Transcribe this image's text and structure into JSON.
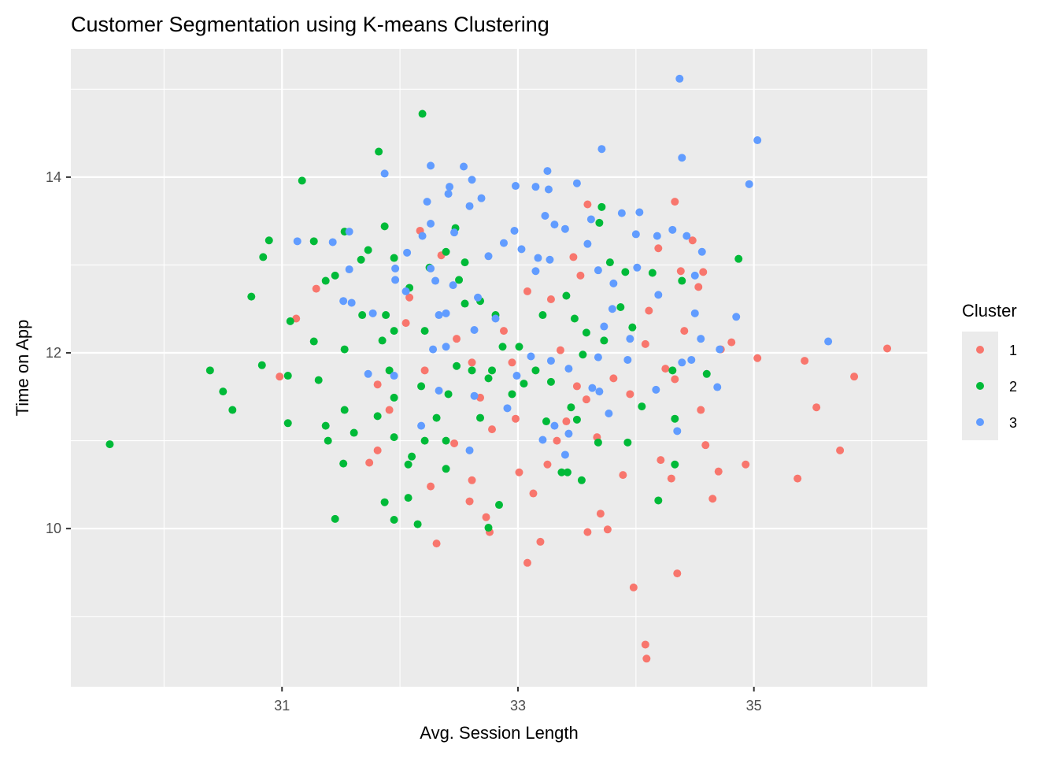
{
  "chart_data": {
    "type": "scatter",
    "title": "Customer Segmentation using K-means Clustering",
    "xlabel": "Avg. Session Length",
    "ylabel": "Time on App",
    "xlim": [
      29.21,
      36.47
    ],
    "ylim": [
      8.2,
      15.46
    ],
    "xticks": [
      31,
      33,
      35
    ],
    "yticks": [
      10,
      12,
      14
    ],
    "xminor": [
      30,
      32,
      34,
      36
    ],
    "yminor": [
      9,
      11,
      13,
      15
    ],
    "grid": true,
    "legend": {
      "title": "Cluster",
      "position": "right"
    },
    "series": [
      {
        "name": "1",
        "color": "#F8766D",
        "points": [
          [
            36.13,
            12.05
          ],
          [
            35.85,
            11.73
          ],
          [
            35.73,
            10.89
          ],
          [
            35.53,
            11.38
          ],
          [
            35.43,
            11.91
          ],
          [
            35.37,
            10.57
          ],
          [
            35.03,
            11.94
          ],
          [
            34.93,
            10.73
          ],
          [
            34.81,
            12.12
          ],
          [
            34.72,
            12.04
          ],
          [
            34.7,
            10.65
          ],
          [
            34.65,
            10.34
          ],
          [
            34.59,
            10.95
          ],
          [
            34.57,
            12.92
          ],
          [
            34.53,
            12.75
          ],
          [
            34.48,
            13.28
          ],
          [
            34.33,
            13.72
          ],
          [
            34.38,
            12.93
          ],
          [
            34.35,
            9.49
          ],
          [
            34.3,
            10.57
          ],
          [
            34.25,
            11.82
          ],
          [
            34.19,
            13.19
          ],
          [
            34.21,
            10.78
          ],
          [
            34.09,
            8.52
          ],
          [
            34.08,
            8.68
          ],
          [
            33.98,
            9.33
          ],
          [
            33.89,
            10.61
          ],
          [
            34.08,
            12.1
          ],
          [
            33.76,
            9.99
          ],
          [
            33.7,
            10.17
          ],
          [
            33.59,
            9.96
          ],
          [
            33.59,
            13.69
          ],
          [
            33.53,
            12.88
          ],
          [
            33.47,
            13.09
          ],
          [
            33.58,
            11.47
          ],
          [
            33.28,
            12.61
          ],
          [
            33.19,
            9.85
          ],
          [
            33.08,
            9.61
          ],
          [
            33.13,
            10.4
          ],
          [
            33.01,
            10.64
          ],
          [
            32.98,
            11.25
          ],
          [
            33.08,
            12.7
          ],
          [
            32.76,
            9.96
          ],
          [
            32.73,
            10.13
          ],
          [
            32.61,
            10.55
          ],
          [
            32.59,
            10.31
          ],
          [
            32.46,
            10.97
          ],
          [
            32.31,
            9.83
          ],
          [
            32.26,
            10.48
          ],
          [
            32.17,
            13.39
          ],
          [
            32.35,
            13.11
          ],
          [
            32.08,
            12.63
          ],
          [
            31.81,
            11.64
          ],
          [
            31.74,
            10.75
          ],
          [
            31.81,
            10.89
          ],
          [
            31.91,
            11.35
          ],
          [
            31.12,
            12.39
          ],
          [
            30.98,
            11.73
          ],
          [
            31.29,
            12.73
          ],
          [
            32.88,
            12.25
          ],
          [
            33.36,
            12.03
          ],
          [
            33.5,
            11.62
          ],
          [
            33.81,
            11.71
          ],
          [
            33.95,
            11.53
          ],
          [
            33.33,
            11.0
          ],
          [
            32.95,
            11.89
          ],
          [
            32.61,
            11.89
          ],
          [
            32.21,
            11.8
          ],
          [
            32.05,
            12.34
          ],
          [
            32.48,
            12.16
          ],
          [
            33.67,
            11.04
          ],
          [
            33.25,
            10.73
          ],
          [
            32.78,
            11.13
          ],
          [
            34.11,
            12.48
          ],
          [
            34.41,
            12.25
          ],
          [
            34.55,
            11.35
          ],
          [
            34.33,
            11.7
          ],
          [
            33.41,
            11.22
          ],
          [
            32.68,
            11.49
          ]
        ]
      },
      {
        "name": "2",
        "color": "#00BA38",
        "points": [
          [
            29.54,
            10.96
          ],
          [
            30.39,
            11.8
          ],
          [
            30.5,
            11.56
          ],
          [
            30.58,
            11.35
          ],
          [
            30.74,
            12.64
          ],
          [
            30.84,
            13.09
          ],
          [
            30.89,
            13.28
          ],
          [
            30.83,
            11.86
          ],
          [
            31.05,
            11.74
          ],
          [
            31.05,
            11.2
          ],
          [
            31.07,
            12.36
          ],
          [
            31.17,
            13.96
          ],
          [
            31.27,
            13.27
          ],
          [
            31.27,
            12.13
          ],
          [
            31.31,
            11.69
          ],
          [
            31.37,
            12.82
          ],
          [
            31.37,
            11.17
          ],
          [
            31.39,
            11.0
          ],
          [
            31.45,
            10.11
          ],
          [
            31.52,
            10.74
          ],
          [
            31.53,
            11.35
          ],
          [
            31.53,
            12.04
          ],
          [
            31.53,
            13.38
          ],
          [
            31.67,
            13.06
          ],
          [
            31.73,
            13.17
          ],
          [
            31.82,
            14.29
          ],
          [
            31.87,
            13.44
          ],
          [
            31.87,
            10.3
          ],
          [
            31.95,
            13.08
          ],
          [
            32.19,
            14.72
          ],
          [
            31.95,
            10.1
          ],
          [
            32.15,
            10.05
          ],
          [
            32.07,
            10.35
          ],
          [
            32.07,
            10.73
          ],
          [
            32.1,
            10.82
          ],
          [
            32.39,
            10.68
          ],
          [
            32.75,
            10.01
          ],
          [
            32.84,
            10.27
          ],
          [
            33.42,
            10.64
          ],
          [
            33.54,
            10.55
          ],
          [
            33.37,
            10.64
          ],
          [
            34.19,
            10.32
          ],
          [
            34.33,
            10.73
          ],
          [
            34.33,
            11.25
          ],
          [
            34.31,
            11.8
          ],
          [
            34.39,
            12.82
          ],
          [
            34.14,
            12.91
          ],
          [
            34.87,
            13.07
          ],
          [
            34.6,
            11.76
          ],
          [
            33.71,
            13.66
          ],
          [
            33.69,
            13.48
          ],
          [
            33.78,
            13.03
          ],
          [
            33.91,
            12.92
          ],
          [
            33.87,
            12.52
          ],
          [
            33.97,
            12.29
          ],
          [
            34.05,
            11.39
          ],
          [
            33.93,
            10.98
          ],
          [
            33.68,
            10.98
          ],
          [
            33.5,
            11.24
          ],
          [
            33.45,
            11.38
          ],
          [
            33.55,
            11.98
          ],
          [
            33.28,
            11.67
          ],
          [
            33.24,
            11.22
          ],
          [
            33.15,
            11.8
          ],
          [
            32.95,
            11.53
          ],
          [
            32.87,
            12.07
          ],
          [
            32.81,
            12.43
          ],
          [
            32.68,
            12.59
          ],
          [
            32.55,
            12.56
          ],
          [
            32.5,
            12.83
          ],
          [
            32.47,
            13.42
          ],
          [
            32.55,
            13.03
          ],
          [
            32.25,
            12.97
          ],
          [
            32.39,
            13.15
          ],
          [
            32.21,
            12.25
          ],
          [
            32.08,
            12.74
          ],
          [
            31.95,
            12.25
          ],
          [
            31.88,
            12.43
          ],
          [
            31.85,
            12.14
          ],
          [
            31.91,
            11.8
          ],
          [
            31.95,
            11.49
          ],
          [
            32.18,
            11.62
          ],
          [
            32.31,
            11.26
          ],
          [
            32.41,
            11.53
          ],
          [
            32.61,
            11.8
          ],
          [
            32.78,
            11.8
          ],
          [
            33.01,
            12.07
          ],
          [
            33.21,
            12.43
          ],
          [
            33.41,
            12.65
          ],
          [
            33.48,
            12.39
          ],
          [
            33.58,
            12.23
          ],
          [
            33.73,
            12.14
          ],
          [
            32.75,
            11.71
          ],
          [
            32.48,
            11.85
          ],
          [
            31.61,
            11.09
          ],
          [
            31.68,
            12.43
          ],
          [
            31.45,
            12.88
          ],
          [
            31.81,
            11.28
          ],
          [
            31.95,
            11.04
          ],
          [
            32.21,
            11.0
          ],
          [
            32.39,
            11.0
          ],
          [
            32.68,
            11.26
          ],
          [
            33.05,
            11.65
          ]
        ]
      },
      {
        "name": "3",
        "color": "#619CFF",
        "points": [
          [
            34.37,
            15.12
          ],
          [
            35.03,
            14.42
          ],
          [
            34.96,
            13.92
          ],
          [
            34.39,
            14.22
          ],
          [
            33.71,
            14.32
          ],
          [
            35.63,
            12.13
          ],
          [
            34.85,
            12.41
          ],
          [
            34.71,
            12.04
          ],
          [
            34.69,
            11.61
          ],
          [
            34.56,
            13.15
          ],
          [
            34.43,
            13.33
          ],
          [
            34.31,
            13.4
          ],
          [
            34.5,
            12.88
          ],
          [
            34.5,
            12.45
          ],
          [
            34.55,
            12.16
          ],
          [
            34.47,
            11.92
          ],
          [
            34.39,
            11.89
          ],
          [
            34.35,
            11.11
          ],
          [
            34.18,
            13.33
          ],
          [
            34.03,
            13.6
          ],
          [
            33.88,
            13.59
          ],
          [
            34.0,
            13.35
          ],
          [
            34.19,
            12.66
          ],
          [
            33.8,
            12.5
          ],
          [
            33.73,
            12.3
          ],
          [
            33.68,
            11.95
          ],
          [
            33.69,
            11.56
          ],
          [
            33.77,
            11.31
          ],
          [
            33.25,
            14.07
          ],
          [
            33.26,
            13.86
          ],
          [
            33.15,
            13.89
          ],
          [
            32.98,
            13.9
          ],
          [
            33.23,
            13.56
          ],
          [
            33.31,
            13.46
          ],
          [
            33.4,
            13.41
          ],
          [
            33.5,
            13.93
          ],
          [
            33.62,
            13.52
          ],
          [
            33.59,
            13.24
          ],
          [
            33.68,
            12.94
          ],
          [
            33.17,
            13.08
          ],
          [
            33.27,
            13.06
          ],
          [
            33.15,
            12.93
          ],
          [
            33.03,
            13.18
          ],
          [
            32.97,
            13.39
          ],
          [
            32.88,
            13.25
          ],
          [
            32.75,
            13.1
          ],
          [
            32.66,
            12.63
          ],
          [
            32.81,
            12.39
          ],
          [
            32.63,
            12.26
          ],
          [
            32.54,
            14.12
          ],
          [
            32.61,
            13.97
          ],
          [
            32.69,
            13.76
          ],
          [
            32.59,
            13.67
          ],
          [
            32.42,
            13.89
          ],
          [
            32.41,
            13.81
          ],
          [
            32.26,
            14.13
          ],
          [
            32.23,
            13.72
          ],
          [
            32.26,
            13.47
          ],
          [
            32.19,
            13.33
          ],
          [
            32.46,
            13.37
          ],
          [
            31.87,
            14.04
          ],
          [
            32.06,
            13.14
          ],
          [
            31.96,
            12.96
          ],
          [
            31.96,
            12.83
          ],
          [
            32.05,
            12.7
          ],
          [
            32.26,
            12.96
          ],
          [
            32.3,
            12.82
          ],
          [
            32.45,
            12.77
          ],
          [
            32.33,
            12.43
          ],
          [
            32.39,
            12.45
          ],
          [
            32.28,
            12.04
          ],
          [
            32.39,
            12.07
          ],
          [
            31.13,
            13.27
          ],
          [
            31.43,
            13.26
          ],
          [
            31.57,
            13.38
          ],
          [
            31.57,
            12.95
          ],
          [
            31.52,
            12.59
          ],
          [
            31.59,
            12.57
          ],
          [
            31.77,
            12.45
          ],
          [
            31.73,
            11.76
          ],
          [
            31.95,
            11.74
          ],
          [
            32.18,
            11.17
          ],
          [
            32.33,
            11.57
          ],
          [
            32.59,
            10.89
          ],
          [
            32.63,
            11.51
          ],
          [
            32.91,
            11.37
          ],
          [
            32.99,
            11.74
          ],
          [
            33.11,
            11.96
          ],
          [
            33.28,
            11.91
          ],
          [
            33.43,
            11.82
          ],
          [
            33.63,
            11.6
          ],
          [
            33.21,
            11.01
          ],
          [
            33.4,
            10.84
          ],
          [
            33.43,
            11.08
          ],
          [
            33.31,
            11.17
          ],
          [
            34.17,
            11.58
          ],
          [
            33.93,
            11.92
          ],
          [
            33.95,
            12.16
          ],
          [
            34.01,
            12.97
          ],
          [
            33.81,
            12.79
          ]
        ]
      }
    ]
  }
}
